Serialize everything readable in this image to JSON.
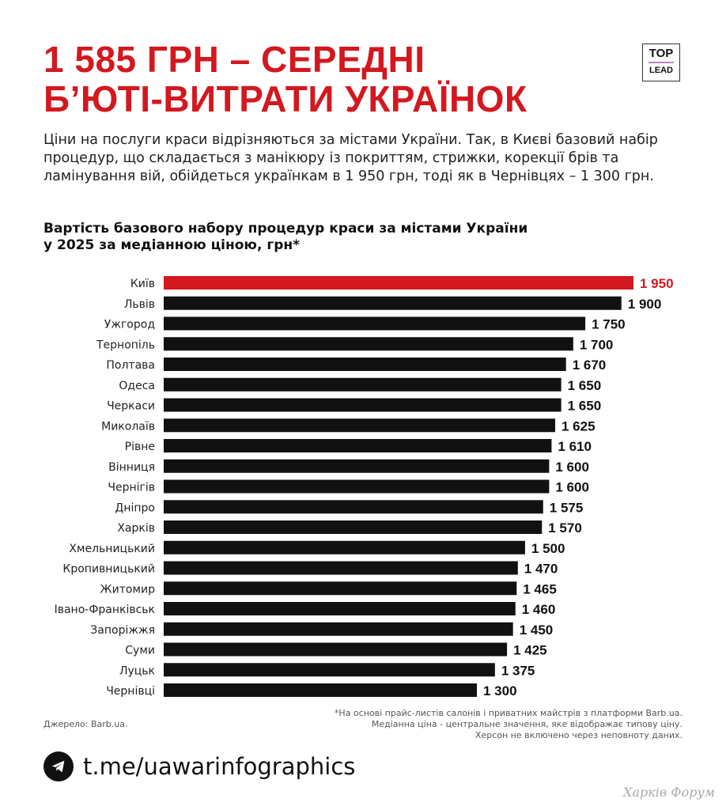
{
  "header": {
    "title_line1": "1 585 ГРН – СЕРЕДНІ",
    "title_line2": "Б’ЮТІ-ВИТРАТИ УКРАЇНОК",
    "logo_top": "TOP",
    "logo_bottom": "LEAD"
  },
  "intro": "Ціни на послуги краси відрізняються за містами України. Так, в Києві базовий набір процедур, що складається з манікюру із покриттям, стрижки, корекції брів та ламінування вій, обійдеться українкам в 1 950 грн, тоді як в Чернівцях – 1 300 грн.",
  "chart_data": {
    "type": "bar",
    "orientation": "horizontal",
    "title_line1": "Вартість базового набору процедур краси за містами України",
    "title_line2": "у 2025 за медіанною ціною, грн*",
    "categories": [
      "Київ",
      "Львів",
      "Ужгород",
      "Тернопіль",
      "Полтава",
      "Одеса",
      "Черкаси",
      "Миколаїв",
      "Рівне",
      "Вінниця",
      "Чернігів",
      "Дніпро",
      "Харків",
      "Хмельницький",
      "Кропивницький",
      "Житомир",
      "Івано-Франківськ",
      "Запоріжжя",
      "Суми",
      "Луцьк",
      "Чернівці"
    ],
    "values": [
      1950,
      1900,
      1750,
      1700,
      1670,
      1650,
      1650,
      1625,
      1610,
      1600,
      1600,
      1575,
      1570,
      1500,
      1470,
      1465,
      1460,
      1450,
      1425,
      1375,
      1300
    ],
    "value_labels": [
      "1 950",
      "1 900",
      "1 750",
      "1 700",
      "1 670",
      "1 650",
      "1 650",
      "1 625",
      "1 610",
      "1 600",
      "1 600",
      "1 575",
      "1 570",
      "1 500",
      "1 470",
      "1 465",
      "1 460",
      "1 450",
      "1 425",
      "1 375",
      "1 300"
    ],
    "highlight": "Київ",
    "colors": {
      "highlight": "#d3181f",
      "default": "#111111"
    },
    "grid": false
  },
  "footer": {
    "footnote": [
      "*На основі прайс-листів салонів і приватних майстрів з платформи Barb.ua.",
      "Медіанна ціна - центральне значення, яке відображає типову ціну.",
      "Херсон не включено через неповноту даних."
    ],
    "source": "Джерело: Barb.ua.",
    "telegram": "t.me/uawarinfographics",
    "watermark": "Харків Форум"
  }
}
